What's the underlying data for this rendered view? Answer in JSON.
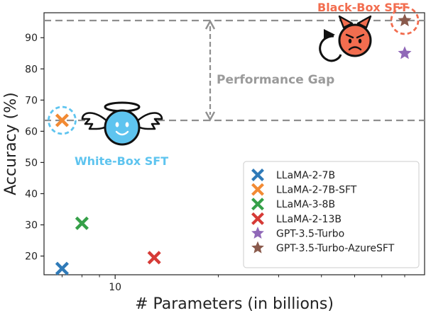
{
  "chart_data": {
    "type": "scatter",
    "xlabel": "# Parameters (in billions)",
    "ylabel": "Accuracy (%)",
    "x_scale": "log",
    "xlim": [
      6.2,
      80
    ],
    "ylim": [
      14,
      98
    ],
    "x_ticks": [
      {
        "value": 10,
        "label": "10"
      }
    ],
    "y_ticks": [
      20,
      30,
      40,
      50,
      60,
      70,
      80,
      90
    ],
    "grid": false,
    "legend_position": "lower-right",
    "series": [
      {
        "name": "LLaMA-2-7B",
        "marker": "x",
        "color": "#2f7ab8",
        "points": [
          {
            "x": 7,
            "y": 16
          }
        ]
      },
      {
        "name": "LLaMA-2-7B-SFT",
        "marker": "x",
        "color": "#f28a33",
        "points": [
          {
            "x": 7,
            "y": 63.5
          }
        ]
      },
      {
        "name": "LLaMA-3-8B",
        "marker": "x",
        "color": "#35a048",
        "points": [
          {
            "x": 8,
            "y": 30.5
          }
        ]
      },
      {
        "name": "LLaMA-2-13B",
        "marker": "x",
        "color": "#d63a36",
        "points": [
          {
            "x": 13,
            "y": 19.5
          }
        ]
      },
      {
        "name": "GPT-3.5-Turbo",
        "marker": "star",
        "color": "#9068b8",
        "points": [
          {
            "x": 70,
            "y": 85
          }
        ]
      },
      {
        "name": "GPT-3.5-Turbo-AzureSFT",
        "marker": "star",
        "color": "#8a5a4c",
        "points": [
          {
            "x": 70,
            "y": 95.5
          }
        ]
      }
    ],
    "reference_lines": [
      {
        "orientation": "horizontal",
        "y": 95.5,
        "style": "dashed",
        "color": "#8f8f8f"
      },
      {
        "orientation": "horizontal",
        "y": 63.5,
        "style": "dashed",
        "color": "#8f8f8f"
      }
    ],
    "annotations": {
      "gap_label": "Performance Gap",
      "white_box_label": "White-Box SFT",
      "black_box_label": "Black-Box SFT"
    }
  },
  "colors": {
    "white_box": "#5ec4ef",
    "black_box": "#f26d4f",
    "gap": "#8f8f8f"
  },
  "icons": [
    "angel-face-icon",
    "devil-face-icon"
  ]
}
